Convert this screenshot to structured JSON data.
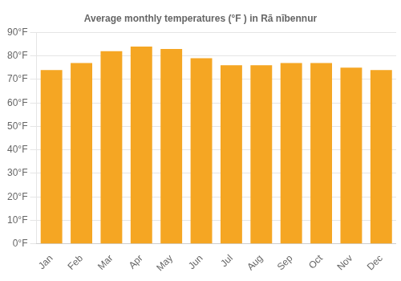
{
  "chart_data": {
    "type": "bar",
    "title": "Average monthly temperatures (°F ) in Rā nībennur",
    "categories": [
      "Jan",
      "Feb",
      "Mar",
      "Apr",
      "May",
      "Jun",
      "Jul",
      "Aug",
      "Sep",
      "Oct",
      "Nov",
      "Dec"
    ],
    "values": [
      74,
      77,
      82,
      84,
      83,
      79,
      76,
      76,
      77,
      77,
      75,
      74
    ],
    "color": "#F5A623",
    "ylim": [
      0,
      90
    ],
    "yticks": [
      {
        "value": 0,
        "label": "0°F"
      },
      {
        "value": 10,
        "label": "10°F"
      },
      {
        "value": 20,
        "label": "20°F"
      },
      {
        "value": 30,
        "label": "30°F"
      },
      {
        "value": 40,
        "label": "40°F"
      },
      {
        "value": 50,
        "label": "50°F"
      },
      {
        "value": 60,
        "label": "60°F"
      },
      {
        "value": 70,
        "label": "70°F"
      },
      {
        "value": 80,
        "label": "80°F"
      },
      {
        "value": 90,
        "label": "90°F"
      }
    ],
    "grid": true
  }
}
